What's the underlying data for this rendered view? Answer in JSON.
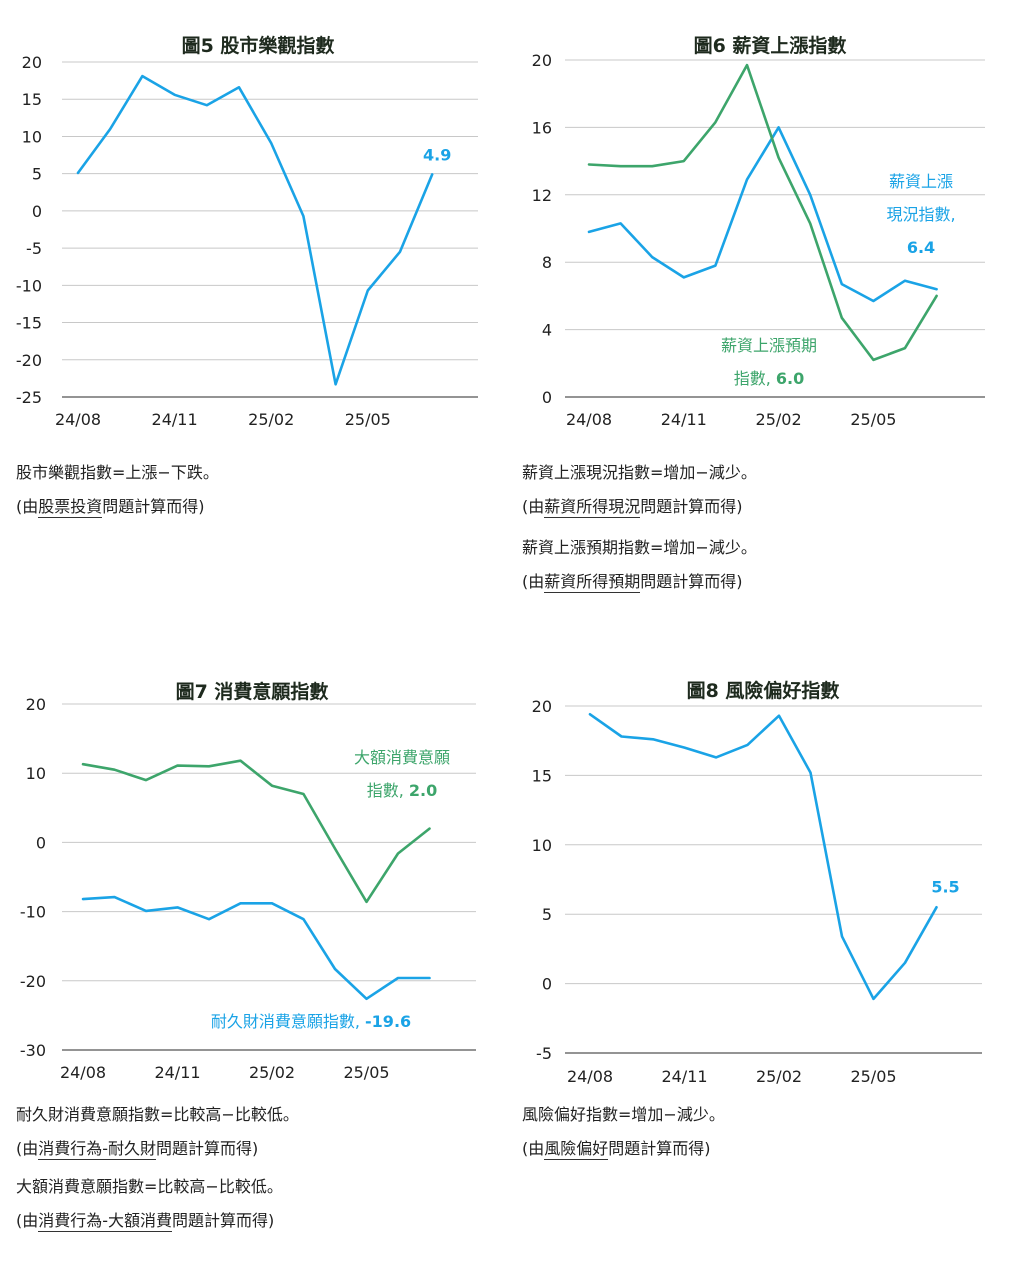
{
  "colors": {
    "blue": "#1aa3e6",
    "green": "#3da56b",
    "grid": "#c8c8c8",
    "axis": "#555555"
  },
  "chart_data": [
    {
      "id": "c5",
      "type": "line",
      "title": "圖5  股市樂觀指數",
      "x": [
        "24/08",
        "24/09",
        "24/10",
        "24/11",
        "24/12",
        "25/01",
        "25/02",
        "25/03",
        "25/04",
        "25/05",
        "25/06",
        "25/07"
      ],
      "xticks": [
        "24/08",
        "24/11",
        "25/02",
        "25/05"
      ],
      "yticks": [
        "20",
        "15",
        "10",
        "5",
        "0",
        "-5",
        "-10",
        "-15",
        "-20",
        "-25"
      ],
      "ylim": [
        -25,
        20
      ],
      "series": [
        {
          "color": "blue",
          "values": [
            5.1,
            11.0,
            18.1,
            15.6,
            14.2,
            16.6,
            9.1,
            -0.7,
            -23.3,
            -10.7,
            -5.5,
            4.9
          ],
          "end_label": "4.9"
        }
      ],
      "notes": [
        {
          "text": "股市樂觀指數=上漲−下跌。"
        },
        {
          "pre": "(由",
          "ul": "股票投資",
          "post": "問題計算而得)"
        }
      ]
    },
    {
      "id": "c6",
      "type": "line",
      "title": "圖6  薪資上漲指數",
      "x": [
        "24/08",
        "24/09",
        "24/10",
        "24/11",
        "24/12",
        "25/01",
        "25/02",
        "25/03",
        "25/04",
        "25/05",
        "25/06",
        "25/07"
      ],
      "xticks": [
        "24/08",
        "24/11",
        "25/02",
        "25/05"
      ],
      "yticks": [
        "20",
        "16",
        "12",
        "8",
        "4",
        "0"
      ],
      "ylim": [
        0,
        20
      ],
      "series": [
        {
          "color": "blue",
          "values": [
            9.8,
            10.3,
            8.3,
            7.1,
            7.8,
            12.9,
            16.0,
            12.0,
            6.7,
            5.7,
            6.9,
            6.4
          ],
          "label_lines": [
            "薪資上漲",
            "現況指數,",
            "6.4"
          ]
        },
        {
          "color": "green",
          "values": [
            13.8,
            13.7,
            13.7,
            14.0,
            16.3,
            19.7,
            14.2,
            10.3,
            4.7,
            2.2,
            2.9,
            6.0
          ],
          "label_lines": [
            "薪資上漲預期",
            "指數, 6.0"
          ]
        }
      ],
      "notes": [
        {
          "text": "薪資上漲現況指數=增加−減少。"
        },
        {
          "pre": "(由",
          "ul": "薪資所得現況",
          "post": "問題計算而得)"
        },
        {
          "text": "薪資上漲預期指數=增加−減少。"
        },
        {
          "pre": "(由",
          "ul": "薪資所得預期",
          "post": "問題計算而得)"
        }
      ]
    },
    {
      "id": "c7",
      "type": "line",
      "title": "圖7  消費意願指數",
      "x": [
        "24/08",
        "24/09",
        "24/10",
        "24/11",
        "24/12",
        "25/01",
        "25/02",
        "25/03",
        "25/04",
        "25/05",
        "25/06",
        "25/07"
      ],
      "xticks": [
        "24/08",
        "24/11",
        "25/02",
        "25/05"
      ],
      "yticks": [
        "20",
        "10",
        "0",
        "-10",
        "-20",
        "-30"
      ],
      "ylim": [
        -30,
        20
      ],
      "series": [
        {
          "color": "green",
          "values": [
            11.3,
            10.5,
            9.0,
            11.1,
            11.0,
            11.8,
            8.2,
            7.0,
            -0.9,
            -8.6,
            -1.6,
            2.0
          ],
          "label_lines": [
            "大額消費意願",
            "指數, 2.0"
          ]
        },
        {
          "color": "blue",
          "values": [
            -8.2,
            -7.9,
            -9.9,
            -9.4,
            -11.1,
            -8.8,
            -8.8,
            -11.1,
            -18.3,
            -22.6,
            -19.6,
            -19.6
          ],
          "label_lines": [
            "耐久財消費意願指數, -19.6"
          ]
        }
      ],
      "notes": [
        {
          "text": "耐久財消費意願指數=比較高−比較低。"
        },
        {
          "pre": "(由",
          "ul": "消費行為-耐久財",
          "post": "問題計算而得)"
        },
        {
          "text": "大額消費意願指數=比較高−比較低。"
        },
        {
          "pre": "(由",
          "ul": "消費行為-大額消費",
          "post": "問題計算而得)"
        }
      ]
    },
    {
      "id": "c8",
      "type": "line",
      "title": "圖8  風險偏好指數",
      "x": [
        "24/08",
        "24/09",
        "24/10",
        "24/11",
        "24/12",
        "25/01",
        "25/02",
        "25/03",
        "25/04",
        "25/05",
        "25/06",
        "25/07"
      ],
      "xticks": [
        "24/08",
        "24/11",
        "25/02",
        "25/05"
      ],
      "yticks": [
        "20",
        "15",
        "10",
        "5",
        "0",
        "-5"
      ],
      "ylim": [
        -5,
        20
      ],
      "series": [
        {
          "color": "blue",
          "values": [
            19.4,
            17.8,
            17.6,
            17.0,
            16.3,
            17.2,
            19.3,
            15.2,
            3.4,
            -1.1,
            1.5,
            5.5
          ],
          "end_label": "5.5"
        }
      ],
      "notes": [
        {
          "text": "風險偏好指數=增加−減少。"
        },
        {
          "pre": "(由",
          "ul": "風險偏好",
          "post": "問題計算而得)"
        }
      ]
    }
  ]
}
